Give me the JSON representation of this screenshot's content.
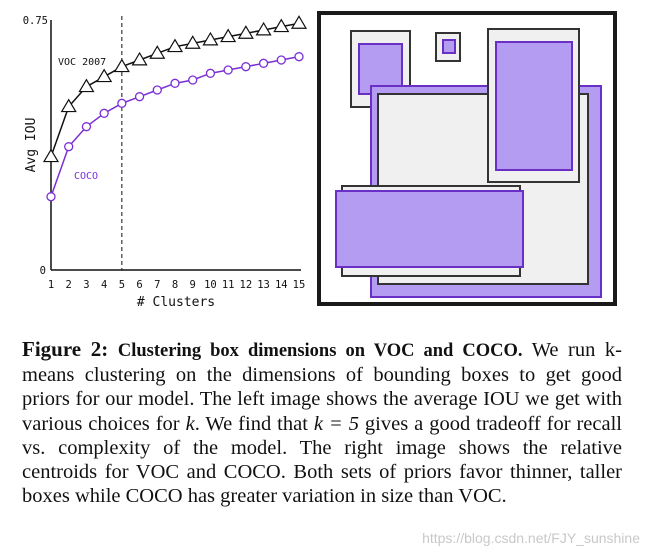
{
  "chart_data": {
    "type": "line",
    "xlabel": "# Clusters",
    "ylabel": "Avg IOU",
    "x": [
      1,
      2,
      3,
      4,
      5,
      6,
      7,
      8,
      9,
      10,
      11,
      12,
      13,
      14,
      15
    ],
    "ylim": [
      0,
      0.75
    ],
    "ytick_labels": [
      "0",
      "0.75"
    ],
    "xtick_labels": [
      "1",
      "2",
      "3",
      "4",
      "5",
      "6",
      "7",
      "8",
      "9",
      "10",
      "11",
      "12",
      "13",
      "14",
      "15"
    ],
    "series": [
      {
        "name": "VOC 2007",
        "marker": "triangle",
        "color": "#111111",
        "values": [
          0.34,
          0.49,
          0.55,
          0.58,
          0.61,
          0.63,
          0.65,
          0.67,
          0.68,
          0.69,
          0.7,
          0.71,
          0.72,
          0.73,
          0.74
        ]
      },
      {
        "name": "COCO",
        "marker": "circle",
        "color": "#7a2fd4",
        "values": [
          0.22,
          0.37,
          0.43,
          0.47,
          0.5,
          0.52,
          0.54,
          0.56,
          0.57,
          0.59,
          0.6,
          0.61,
          0.62,
          0.63,
          0.64
        ]
      }
    ],
    "vline_x": 5,
    "grid": false
  },
  "centroids": {
    "voc_color": "#f0f0f0",
    "coco_color": "#b59cf3"
  },
  "caption": {
    "label": "Figure 2:",
    "title": "Clustering box dimensions on VOC and COCO.",
    "part1": " We run k-means clustering on the dimensions of bounding boxes to get good priors for our model. The left image shows the average IOU we get with various choices for ",
    "k1": "k",
    "part2": ". We find that ",
    "k2": "k = 5",
    "part3": " gives a good tradeoff for recall vs. complexity of the model. The right image shows the relative centroids for VOC and COCO. Both sets of priors favor thinner, taller boxes while COCO has greater variation in size than VOC."
  },
  "watermark": "https://blog.csdn.net/FJY_sunshine"
}
